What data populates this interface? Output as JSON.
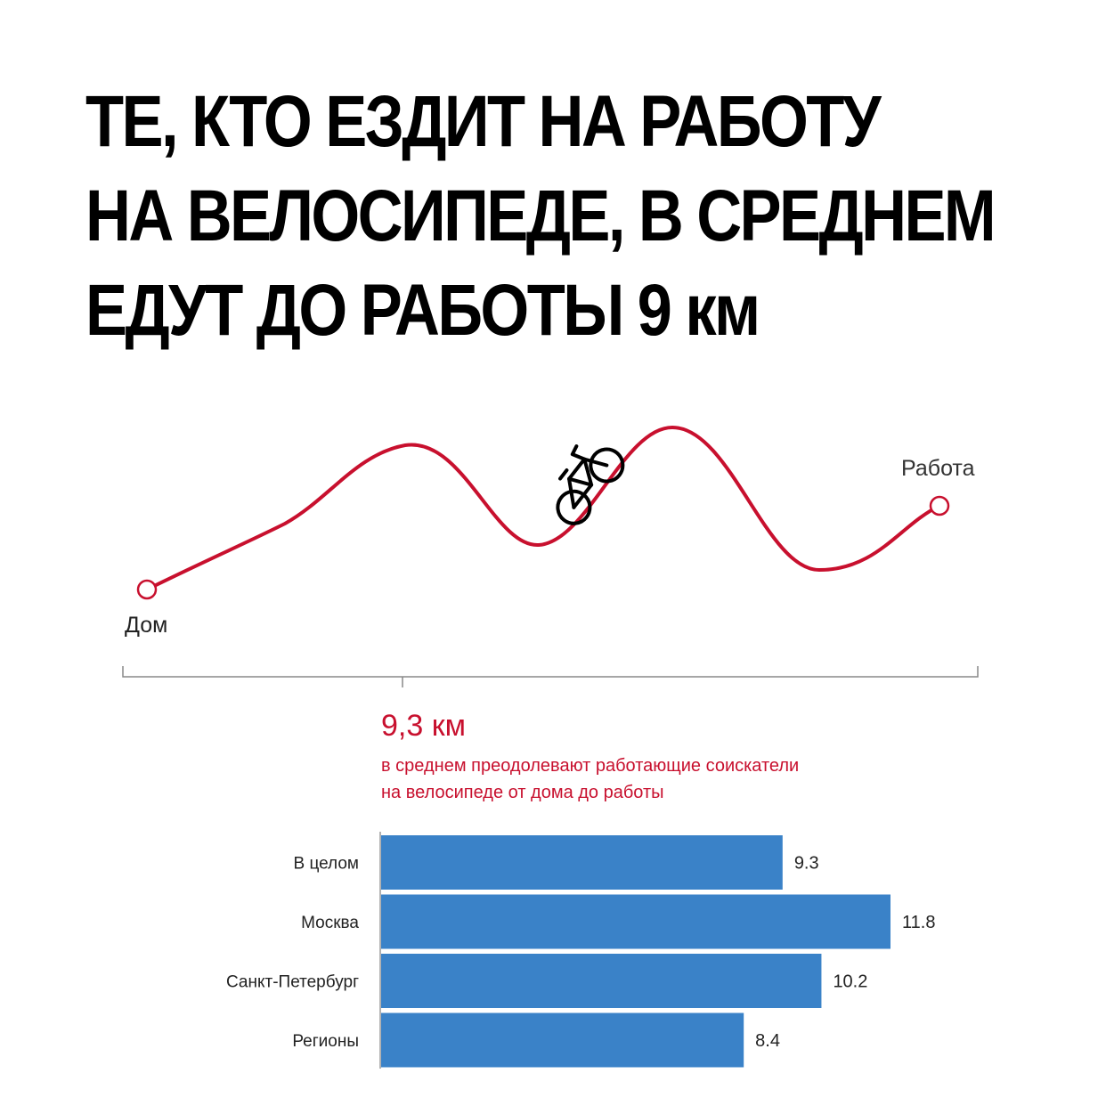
{
  "headline": {
    "line1": "ТЕ, КТО ЕЗДИТ НА РАБОТУ",
    "line2": "НА ВЕЛОСИПЕДЕ, В СРЕДНЕМ",
    "line3": "ЕДУТ ДО РАБОТЫ 9 км"
  },
  "route": {
    "start_label": "Дом",
    "end_label": "Работа",
    "line_color": "#c8102e",
    "icon": "bicycle-icon"
  },
  "summary": {
    "value": "9,3 км",
    "description_line1": "в среднем преодолевают работающие соискатели",
    "description_line2": "на велосипеде от дома до работы"
  },
  "chart_data": {
    "type": "bar",
    "orientation": "horizontal",
    "categories": [
      "В целом",
      "Москва",
      "Санкт-Петербург",
      "Регионы"
    ],
    "values": [
      9.3,
      11.8,
      10.2,
      8.4
    ],
    "value_labels": [
      "9.3",
      "11.8",
      "10.2",
      "8.4"
    ],
    "bar_color": "#3a82c8",
    "title": "",
    "xlabel": "",
    "ylabel": "",
    "xlim": [
      0,
      12
    ],
    "grid": false
  }
}
